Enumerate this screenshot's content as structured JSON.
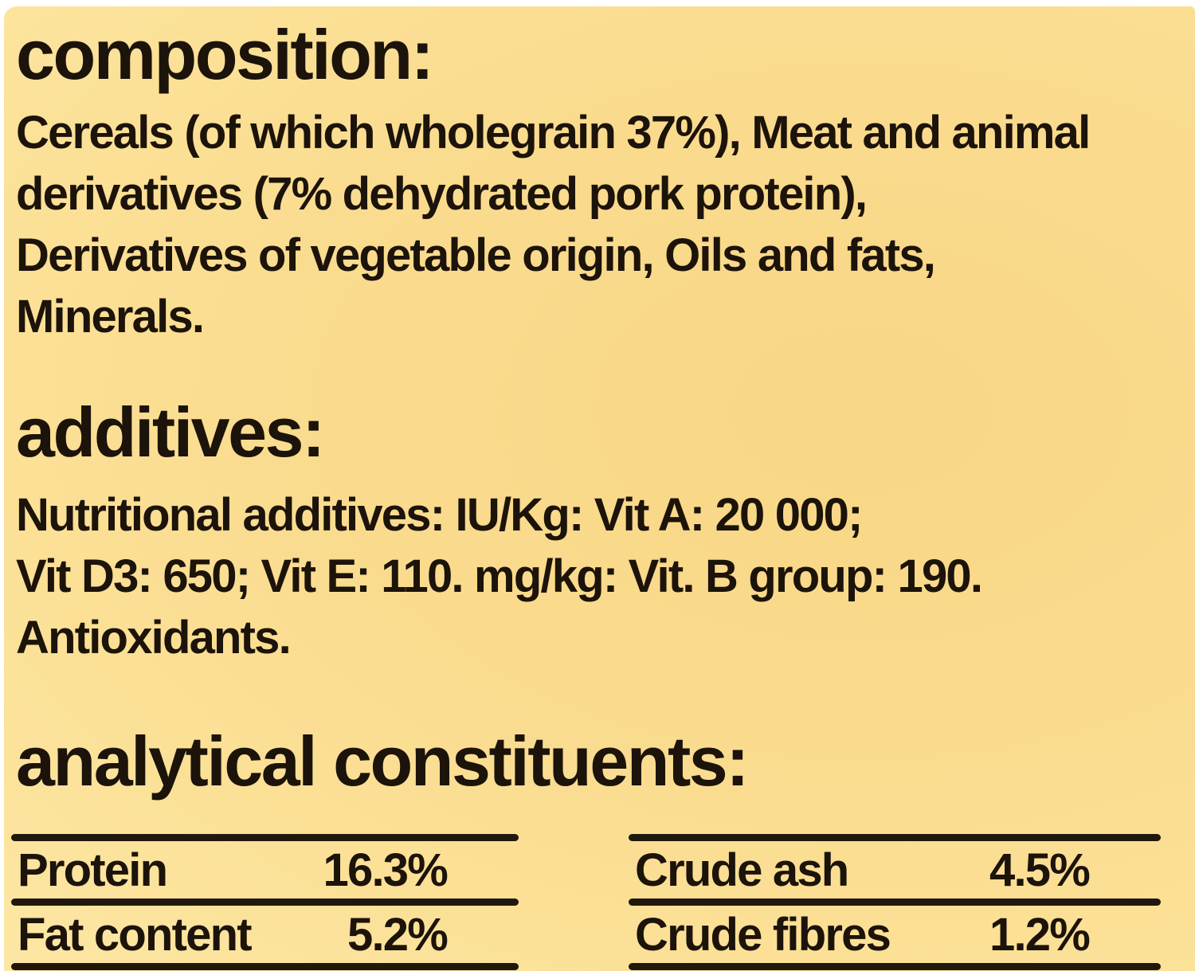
{
  "label": {
    "colors": {
      "background_gold_deep": "#F8D685",
      "background_gold_light": "#FDE9A9",
      "ink": "#1C130A"
    },
    "composition": {
      "heading": "composition:",
      "lines": [
        "Cereals (of which wholegrain 37%), Meat and animal",
        "derivatives (7% dehydrated pork protein),",
        "Derivatives of vegetable origin, Oils and fats,",
        "Minerals."
      ]
    },
    "additives": {
      "heading": "additives:",
      "lines": [
        "Nutritional additives: IU/Kg: Vit A: 20 000;",
        "Vit D3: 650; Vit E: 110. mg/kg: Vit. B group: 190.",
        "Antioxidants."
      ]
    },
    "analytical": {
      "heading": "analytical constituents:",
      "table": {
        "left": [
          {
            "label": "Protein",
            "value": "16.3%"
          },
          {
            "label": "Fat content",
            "value": "5.2%"
          }
        ],
        "right": [
          {
            "label": "Crude ash",
            "value": "4.5%"
          },
          {
            "label": "Crude fibres",
            "value": "1.2%"
          }
        ]
      }
    }
  }
}
